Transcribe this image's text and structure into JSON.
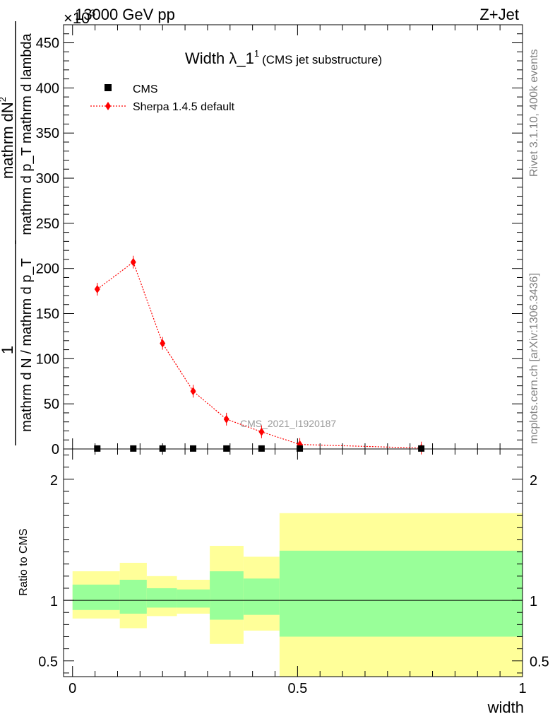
{
  "header": {
    "energy_label": "13000 GeV pp",
    "process_label": "Z+Jet",
    "scale_label": "×10",
    "scale_exponent": "3"
  },
  "side_labels": {
    "rivet": "Rivet 3.1.10,  400k events",
    "mcplots": "mcplots.cern.ch [arXiv:1306.3436]"
  },
  "watermark": "CMS_2021_I1920187",
  "chart_data": [
    {
      "type": "scatter",
      "title": "Width λ_1",
      "title_superscript": "1",
      "subtitle": "(CMS jet substructure)",
      "ylabel_numerator": "mathrm d^{2}N",
      "ylabel_numerator_text": "mathrm dN",
      "ylabel_numerator_sup": "2",
      "ylabel_denominator_text": "mathrm d p_T mathrm d lambda",
      "ylabel_prefix": "1",
      "ylabel_prefix_denominator": "mathrm d N / mathrm d p_T",
      "ylim": [
        0,
        470
      ],
      "yticks": [
        0,
        50,
        100,
        150,
        200,
        250,
        300,
        350,
        400,
        450
      ],
      "xlim": [
        -0.02,
        1.0
      ],
      "legend_position": "top-left",
      "series": [
        {
          "name": "CMS",
          "color": "#000000",
          "marker": "square",
          "x": [
            0.055,
            0.135,
            0.2,
            0.268,
            0.342,
            0.42,
            0.505,
            0.775
          ],
          "values": [
            0.5,
            0.5,
            0.5,
            0.5,
            0.5,
            0.5,
            0.5,
            0.5
          ]
        },
        {
          "name": "Sherpa 1.4.5 default",
          "color": "#ff0000",
          "marker": "diamond",
          "line": "dotted",
          "x": [
            0.055,
            0.135,
            0.2,
            0.268,
            0.342,
            0.42,
            0.505,
            0.775
          ],
          "values": [
            177,
            207,
            117,
            64,
            33,
            19,
            5,
            1
          ]
        }
      ]
    },
    {
      "type": "area",
      "ylabel": "Ratio to CMS",
      "xlabel": "width",
      "ylim": [
        0.37,
        2.25
      ],
      "yticks": [
        0.5,
        1,
        2
      ],
      "ytick_labels": [
        "0.5",
        "1",
        "2"
      ],
      "xlim": [
        -0.02,
        1.0
      ],
      "xticks": [
        0,
        0.5,
        1
      ],
      "xtick_labels": [
        "0",
        "0.5",
        "1"
      ],
      "reference_line": 1,
      "bins": [
        {
          "lo": 0.0,
          "hi": 0.105,
          "yellow": [
            0.85,
            1.24
          ],
          "green": [
            0.92,
            1.13
          ]
        },
        {
          "lo": 0.105,
          "hi": 0.165,
          "yellow": [
            0.77,
            1.31
          ],
          "green": [
            0.89,
            1.17
          ]
        },
        {
          "lo": 0.165,
          "hi": 0.232,
          "yellow": [
            0.87,
            1.2
          ],
          "green": [
            0.94,
            1.1
          ]
        },
        {
          "lo": 0.232,
          "hi": 0.305,
          "yellow": [
            0.89,
            1.17
          ],
          "green": [
            0.94,
            1.09
          ]
        },
        {
          "lo": 0.305,
          "hi": 0.38,
          "yellow": [
            0.64,
            1.45
          ],
          "green": [
            0.84,
            1.24
          ]
        },
        {
          "lo": 0.38,
          "hi": 0.46,
          "yellow": [
            0.75,
            1.36
          ],
          "green": [
            0.88,
            1.18
          ]
        },
        {
          "lo": 0.46,
          "hi": 1.0,
          "yellow": [
            0.37,
            1.72
          ],
          "green": [
            0.7,
            1.41
          ]
        }
      ],
      "colors": {
        "yellow": "#ffff99",
        "green": "#99ff99"
      }
    }
  ]
}
